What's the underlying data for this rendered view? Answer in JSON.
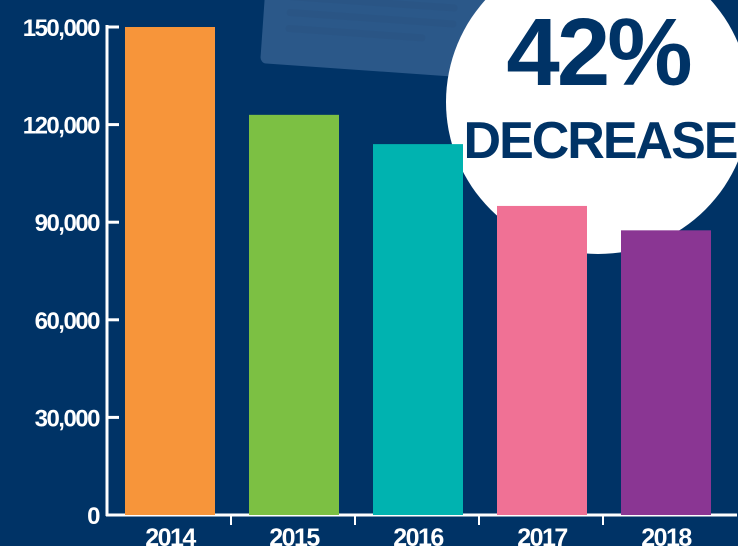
{
  "badge": {
    "percent": "42%",
    "label": "DECREASE"
  },
  "chart_data": {
    "type": "bar",
    "categories": [
      "2014",
      "2015",
      "2016",
      "2017",
      "2018"
    ],
    "values": [
      150000,
      123000,
      114000,
      95000,
      87500
    ],
    "colors": [
      "#F7953A",
      "#7CC043",
      "#00B3B0",
      "#F07195",
      "#8A3693"
    ],
    "yticks": [
      "0",
      "30,000",
      "60,000",
      "90,000",
      "120,000",
      "150,000"
    ],
    "ylim": [
      0,
      150000
    ],
    "title": "",
    "xlabel": "",
    "ylabel": "",
    "grid": false
  }
}
